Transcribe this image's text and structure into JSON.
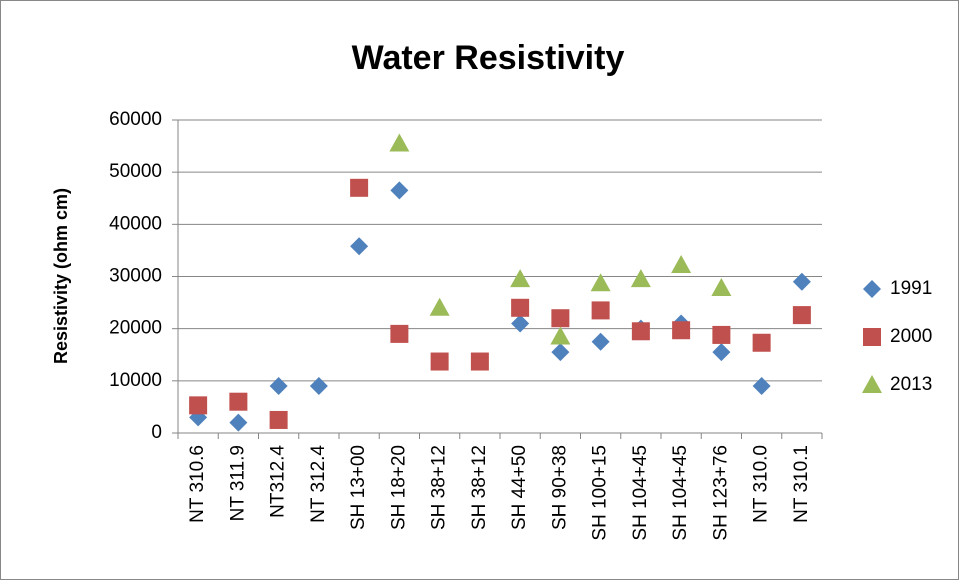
{
  "chart_data": {
    "type": "scatter",
    "title": "Water Resistivity",
    "y_label": "Resistivity (ohm cm)",
    "categories": [
      "NT 310.6",
      "NT 311.9",
      "NT312.4",
      "NT 312.4",
      "SH 13+00",
      "SH 18+20",
      "SH 38+12",
      "SH 38+12",
      "SH 44+50",
      "SH 90+38",
      "SH 100+15",
      "SH 104+45",
      "SH 104+45",
      "SH 123+76",
      "NT 310.0",
      "NT 310.1"
    ],
    "series": [
      {
        "name": "1991",
        "color": "#4f81bd",
        "marker": "diamond",
        "values": [
          3000,
          2000,
          9000,
          9000,
          35800,
          46500,
          null,
          null,
          21000,
          15500,
          17500,
          20000,
          21000,
          15500,
          9000,
          29000
        ]
      },
      {
        "name": "2000",
        "color": "#c0504d",
        "marker": "square",
        "values": [
          5300,
          6000,
          2500,
          null,
          47000,
          19000,
          13700,
          13700,
          24000,
          22000,
          23500,
          19500,
          19700,
          18800,
          17300,
          22600
        ]
      },
      {
        "name": "2013",
        "color": "#9bbb59",
        "marker": "triangle",
        "values": [
          null,
          null,
          null,
          null,
          null,
          55500,
          24000,
          null,
          29500,
          18500,
          28700,
          29500,
          32200,
          27800,
          null,
          null
        ]
      }
    ],
    "ylim": [
      0,
      60000
    ],
    "yticks": [
      0,
      10000,
      20000,
      30000,
      40000,
      50000,
      60000
    ],
    "grid": true,
    "legend": "right"
  }
}
